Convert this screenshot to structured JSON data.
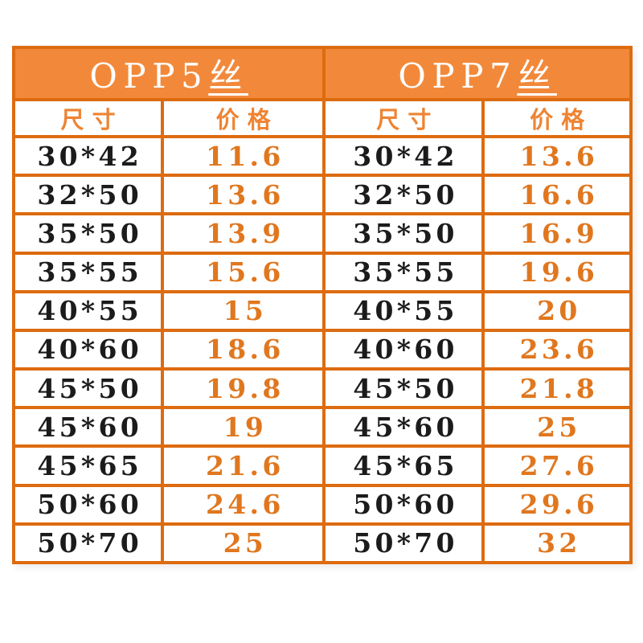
{
  "styles": {
    "page_bg": "#ffffff",
    "border_color": "#dd6b10",
    "header_bg": "#f2893a",
    "header_text": "#ffffff",
    "subheader_text": "#ee8433",
    "size_text": "#1b1b1b",
    "price_text": "#e0771f"
  },
  "chart_data": [
    {
      "type": "table",
      "title": "OPP5丝",
      "title_latin": "OPP5",
      "title_cjk": "丝",
      "columns": [
        "尺寸",
        "价格"
      ],
      "rows": [
        [
          "30*42",
          "11.6"
        ],
        [
          "32*50",
          "13.6"
        ],
        [
          "35*50",
          "13.9"
        ],
        [
          "35*55",
          "15.6"
        ],
        [
          "40*55",
          "15"
        ],
        [
          "40*60",
          "18.6"
        ],
        [
          "45*50",
          "19.8"
        ],
        [
          "45*60",
          "19"
        ],
        [
          "45*65",
          "21.6"
        ],
        [
          "50*60",
          "24.6"
        ],
        [
          "50*70",
          "25"
        ]
      ]
    },
    {
      "type": "table",
      "title": "OPP7丝",
      "title_latin": "OPP7",
      "title_cjk": "丝",
      "columns": [
        "尺寸",
        "价格"
      ],
      "rows": [
        [
          "30*42",
          "13.6"
        ],
        [
          "32*50",
          "16.6"
        ],
        [
          "35*50",
          "16.9"
        ],
        [
          "35*55",
          "19.6"
        ],
        [
          "40*55",
          "20"
        ],
        [
          "40*60",
          "23.6"
        ],
        [
          "45*50",
          "21.8"
        ],
        [
          "45*60",
          "25"
        ],
        [
          "45*65",
          "27.6"
        ],
        [
          "50*60",
          "29.6"
        ],
        [
          "50*70",
          "32"
        ]
      ]
    }
  ]
}
